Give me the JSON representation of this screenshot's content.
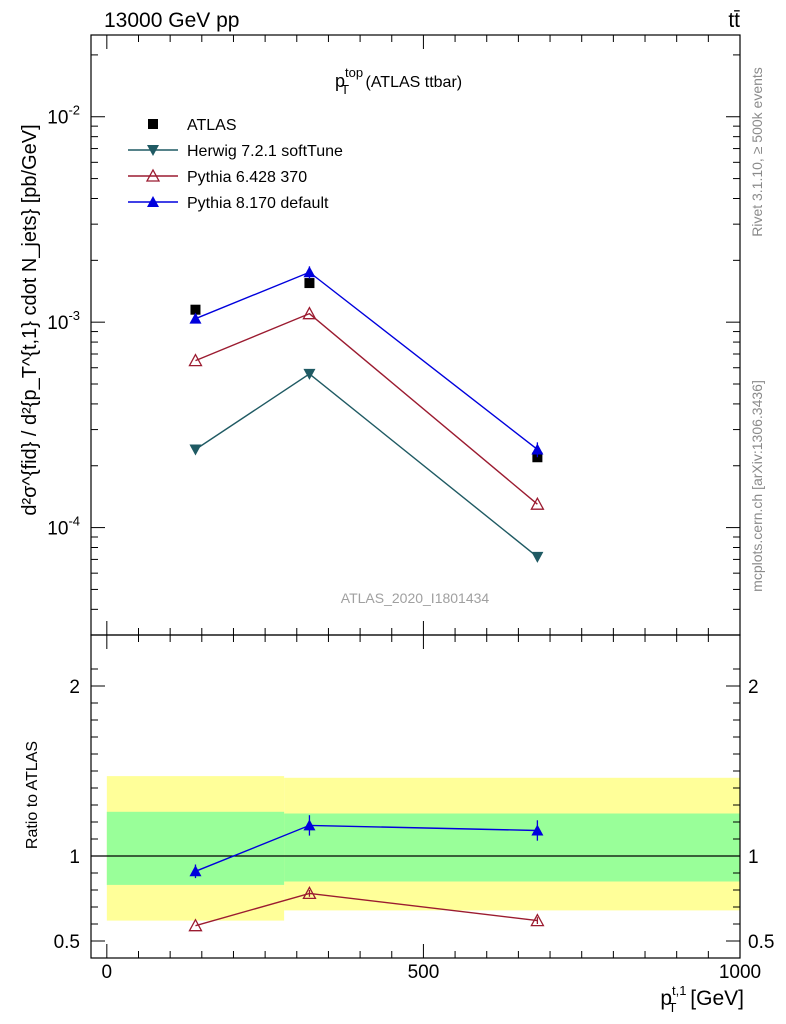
{
  "header": {
    "left": "13000 GeV pp",
    "right": "tt̄"
  },
  "main_plot": {
    "title_main": "p",
    "title_sup": "top",
    "title_sub": "T",
    "title_suffix": " (ATLAS ttbar)",
    "analysis_id": "ATLAS_2020_I1801434",
    "ylabel": "d²σ^{fid} / d²{p_T^{t,1} cdot N_jets} [pb/GeV]"
  },
  "side_labels": {
    "rivet": "Rivet 3.1.10, ≥ 500k events",
    "mcplots": "mcplots.cern.ch [arXiv:1306.3436]"
  },
  "legend": [
    {
      "label": "ATLAS",
      "color": "#000000",
      "marker": "square"
    },
    {
      "label": "Herwig 7.2.1 softTune",
      "color": "#1f5a63",
      "marker": "triangle-down"
    },
    {
      "label": "Pythia 6.428 370",
      "color": "#9b1b30",
      "marker": "triangle-open"
    },
    {
      "label": "Pythia 8.170 default",
      "color": "#0000dd",
      "marker": "triangle-up"
    }
  ],
  "ratio_plot": {
    "ylabel": "Ratio to ATLAS",
    "xlabel_main": "p",
    "xlabel_sup": "t,1",
    "xlabel_sub": "T",
    "xlabel_unit": " [GeV]"
  },
  "chart_data": [
    {
      "type": "line",
      "yscale": "log",
      "xlim": [
        -25,
        1000
      ],
      "ylim": [
        3e-05,
        0.025
      ],
      "x": [
        140,
        320,
        680
      ],
      "bin_edges": [
        0,
        280,
        360,
        1000
      ],
      "ytick_labels": [
        {
          "value": 0.0001,
          "base": "10",
          "exp": "-4"
        },
        {
          "value": 0.001,
          "base": "10",
          "exp": "-3"
        },
        {
          "value": 0.01,
          "base": "10",
          "exp": "-2"
        }
      ],
      "series": [
        {
          "name": "ATLAS",
          "values": [
            0.00115,
            0.00155,
            0.00022
          ]
        },
        {
          "name": "Herwig 7.2.1 softTune",
          "values": [
            0.00024,
            0.00056,
            7.2e-05
          ]
        },
        {
          "name": "Pythia 6.428 370",
          "values": [
            0.00065,
            0.0011,
            0.00013
          ]
        },
        {
          "name": "Pythia 8.170 default",
          "values": [
            0.00104,
            0.00175,
            0.00024
          ],
          "errors": [
            4e-05,
            0.00012,
            2e-05
          ]
        }
      ]
    },
    {
      "type": "line",
      "xlim": [
        -25,
        1000
      ],
      "ylim": [
        0.4,
        2.3
      ],
      "xticks": [
        0,
        500,
        1000
      ],
      "yticks": [
        0.5,
        1,
        2
      ],
      "x": [
        140,
        320,
        680
      ],
      "reference": 1.0,
      "bands": {
        "edges": [
          0,
          280,
          1000
        ],
        "yellow": [
          [
            0.62,
            1.47
          ],
          [
            0.68,
            1.46
          ]
        ],
        "green": [
          [
            0.83,
            1.26
          ],
          [
            0.85,
            1.25
          ]
        ]
      },
      "series": [
        {
          "name": "Pythia 6.428 370",
          "values": [
            0.59,
            0.78,
            0.62
          ],
          "errors": [
            0,
            0.02,
            0.02
          ]
        },
        {
          "name": "Pythia 8.170 default",
          "values": [
            0.91,
            1.18,
            1.15
          ],
          "errors": [
            0.04,
            0.06,
            0.06
          ]
        }
      ]
    }
  ]
}
